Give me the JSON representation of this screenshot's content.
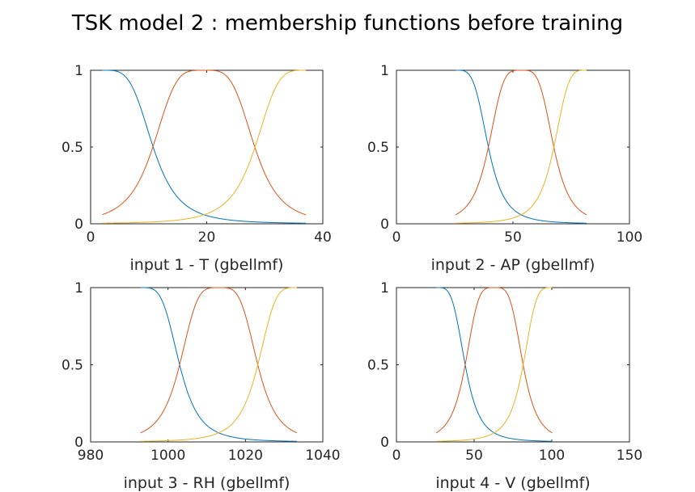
{
  "figure": {
    "title": "TSK model 2 : membership functions before training"
  },
  "colors": [
    "#0072BD",
    "#D95319",
    "#EDB120"
  ],
  "chart_data": [
    {
      "type": "line",
      "xlabel": "input 1 - T (gbellmf)",
      "ylabel": "",
      "xlim": [
        0,
        40
      ],
      "ylim": [
        0,
        1
      ],
      "xticks": [
        0,
        20,
        40
      ],
      "yticks": [
        0,
        0.5,
        1
      ],
      "xdomain": [
        2.0,
        37.1
      ],
      "series": [
        {
          "color": "#0072BD",
          "a": 8.78,
          "b": 2,
          "c": 2.0
        },
        {
          "color": "#D95319",
          "a": 8.78,
          "b": 2,
          "c": 19.5
        },
        {
          "color": "#EDB120",
          "a": 8.78,
          "b": 2,
          "c": 37.1
        }
      ]
    },
    {
      "type": "line",
      "xlabel": "input 2 - AP (gbellmf)",
      "ylabel": "",
      "xlim": [
        0,
        100
      ],
      "ylim": [
        0,
        1
      ],
      "xticks": [
        0,
        50,
        100
      ],
      "yticks": [
        0,
        0.5,
        1
      ],
      "xdomain": [
        25.4,
        81.6
      ],
      "series": [
        {
          "color": "#0072BD",
          "a": 14.05,
          "b": 2,
          "c": 25.4
        },
        {
          "color": "#D95319",
          "a": 14.05,
          "b": 2,
          "c": 53.5
        },
        {
          "color": "#EDB120",
          "a": 14.05,
          "b": 2,
          "c": 81.6
        }
      ]
    },
    {
      "type": "line",
      "xlabel": "input 3 - RH (gbellmf)",
      "ylabel": "",
      "xlim": [
        980,
        1040
      ],
      "ylim": [
        0,
        1
      ],
      "xticks": [
        980,
        1000,
        1020,
        1040
      ],
      "yticks": [
        0,
        0.5,
        1
      ],
      "xdomain": [
        992.9,
        1033.3
      ],
      "series": [
        {
          "color": "#0072BD",
          "a": 10.1,
          "b": 2,
          "c": 992.9
        },
        {
          "color": "#D95319",
          "a": 10.1,
          "b": 2,
          "c": 1013.1
        },
        {
          "color": "#EDB120",
          "a": 10.1,
          "b": 2,
          "c": 1033.3
        }
      ]
    },
    {
      "type": "line",
      "xlabel": "input 4 - V (gbellmf)",
      "ylabel": "",
      "xlim": [
        0,
        150
      ],
      "ylim": [
        0,
        1
      ],
      "xticks": [
        0,
        50,
        100,
        150
      ],
      "yticks": [
        0,
        0.5,
        1
      ],
      "xdomain": [
        25.6,
        100.2
      ],
      "series": [
        {
          "color": "#0072BD",
          "a": 18.65,
          "b": 2,
          "c": 25.6
        },
        {
          "color": "#D95319",
          "a": 18.65,
          "b": 2,
          "c": 62.9
        },
        {
          "color": "#EDB120",
          "a": 18.65,
          "b": 2,
          "c": 100.2
        }
      ]
    }
  ]
}
